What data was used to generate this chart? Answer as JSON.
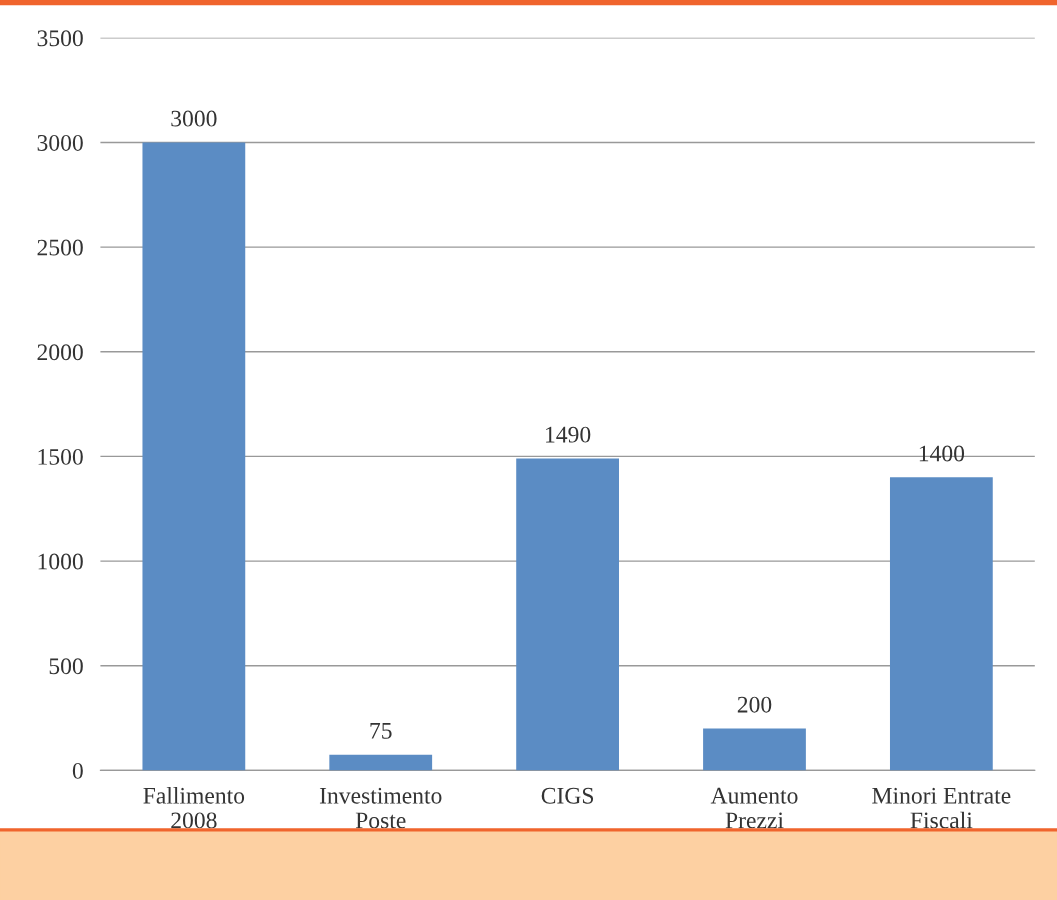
{
  "chart_data": {
    "type": "bar",
    "categories": [
      "Fallimento\n2008",
      "Investimento\nPoste",
      "CIGS",
      "Aumento\nPrezzi",
      "Minori Entrate\nFiscali"
    ],
    "values": [
      3000,
      75,
      1490,
      200,
      1400
    ],
    "color": "#5b8cc4",
    "ylim": [
      0,
      3500
    ],
    "yticks": [
      0,
      500,
      1000,
      1500,
      2000,
      2500,
      3000,
      3500
    ],
    "grid": "y",
    "data_labels": true,
    "legend": false
  }
}
